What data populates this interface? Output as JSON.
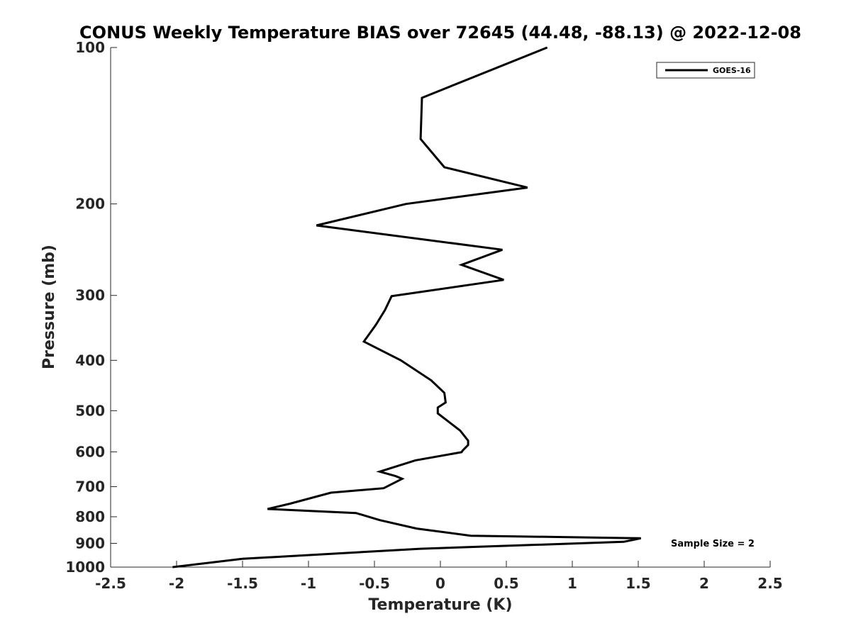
{
  "chart_data": {
    "type": "line",
    "title": "CONUS Weekly Temperature BIAS over 72645 (44.48, -88.13) @ 2022-12-08",
    "xlabel": "Temperature (K)",
    "ylabel": "Pressure (mb)",
    "xlim": [
      -2.5,
      2.5
    ],
    "ylim": [
      100,
      1000
    ],
    "y_scale": "log",
    "y_reversed": true,
    "x_ticks": [
      -2.5,
      -2,
      -1.5,
      -1,
      -0.5,
      0,
      0.5,
      1,
      1.5,
      2,
      2.5
    ],
    "x_tick_labels": [
      "-2.5",
      "-2",
      "-1.5",
      "-1",
      "-0.5",
      "0",
      "0.5",
      "1",
      "1.5",
      "2",
      "2.5"
    ],
    "y_ticks": [
      100,
      200,
      300,
      400,
      500,
      600,
      700,
      800,
      900,
      1000
    ],
    "y_tick_labels": [
      "100",
      "200",
      "300",
      "400",
      "500",
      "600",
      "700",
      "800",
      "900",
      "1000"
    ],
    "grid": false,
    "legend_position": "top-right",
    "series": [
      {
        "name": "GOES-16",
        "color": "#000000",
        "x": [
          0.81,
          -0.14,
          -0.15,
          0.03,
          0.66,
          -0.26,
          -0.94,
          0.47,
          0.16,
          0.48,
          -0.37,
          -0.42,
          -0.49,
          -0.58,
          -0.3,
          -0.07,
          0.03,
          0.04,
          -0.02,
          -0.02,
          0.15,
          0.21,
          0.21,
          0.17,
          0.16,
          -0.19,
          -0.46,
          -0.34,
          -0.29,
          -0.43,
          -0.83,
          -1.14,
          -1.31,
          -0.64,
          -0.46,
          -0.18,
          0.23,
          1.52,
          1.39,
          -0.15,
          -1.5,
          -2.03
        ],
        "y": [
          100,
          125,
          150,
          170,
          186,
          200,
          220,
          245,
          262,
          280,
          301,
          320,
          342,
          368,
          400,
          437,
          462,
          482,
          493,
          506,
          546,
          571,
          582,
          596,
          601,
          623,
          655,
          668,
          676,
          705,
          719,
          755,
          773,
          787,
          812,
          843,
          870,
          880,
          894,
          922,
          964,
          1000
        ]
      }
    ]
  },
  "legend": {
    "items": [
      {
        "label": "GOES-16",
        "color": "#000000"
      }
    ]
  },
  "annotation": {
    "sample_size": "Sample Size = 2"
  }
}
